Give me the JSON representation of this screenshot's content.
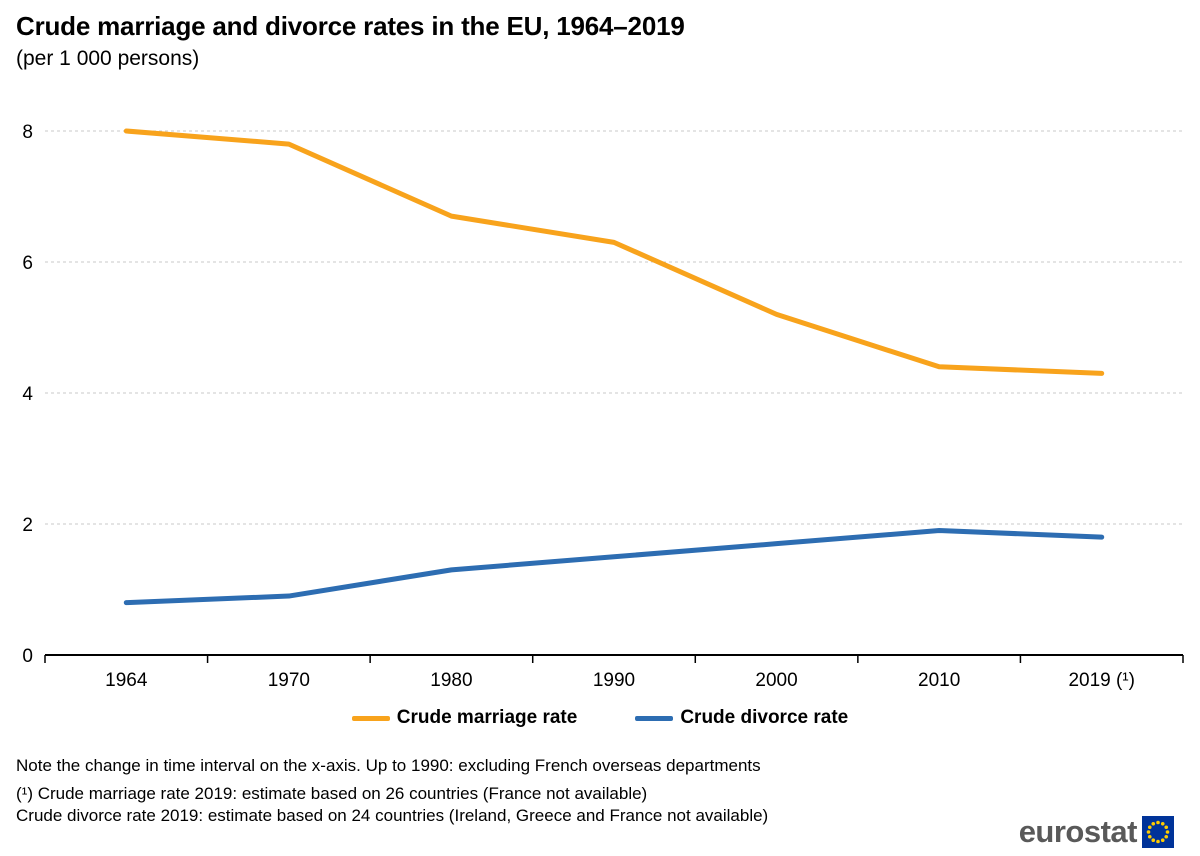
{
  "header": {
    "title": "Crude marriage and divorce rates in the EU, 1964–2019",
    "subtitle": "(per 1 000 persons)"
  },
  "chart_data": {
    "type": "line",
    "categories": [
      "1964",
      "1970",
      "1980",
      "1990",
      "2000",
      "2010",
      "2019 (¹)"
    ],
    "series": [
      {
        "name": "Crude marriage rate",
        "color": "#F8A31C",
        "values": [
          8.0,
          7.8,
          6.7,
          6.3,
          5.2,
          4.4,
          4.3
        ]
      },
      {
        "name": "Crude divorce rate",
        "color": "#2D6DB2",
        "values": [
          0.8,
          0.9,
          1.3,
          1.5,
          1.7,
          1.9,
          1.8
        ]
      }
    ],
    "title": "Crude marriage and divorce rates in the EU, 1964–2019",
    "subtitle": "(per 1 000 persons)",
    "xlabel": "",
    "ylabel": "",
    "ylim": [
      0,
      8.4
    ],
    "yticks": [
      0,
      2,
      4,
      6,
      8
    ],
    "grid": "horizontal dashed gridlines at yticks above 0",
    "legend_position": "bottom-center",
    "x_axis_note": "unequal time intervals: 6-year then 10-year steps, ticks at category boundaries"
  },
  "footnotes": {
    "line1": "Note the change in time interval on the x-axis. Up to 1990: excluding French overseas departments",
    "line2": "(¹) Crude marriage rate 2019: estimate based on 26 countries (France not available)",
    "line3": "Crude divorce rate 2019: estimate based on 24 countries (Ireland, Greece and France not available)"
  },
  "branding": {
    "logo_text": "eurostat",
    "logo_text_color": "#595959",
    "flag_color": "#003399",
    "star_color": "#FFCC00"
  },
  "colors": {
    "background": "#ffffff",
    "gridline": "#c8c8c8",
    "axis": "#000000",
    "marriage_line": "#F8A31C",
    "divorce_line": "#2D6DB2"
  }
}
